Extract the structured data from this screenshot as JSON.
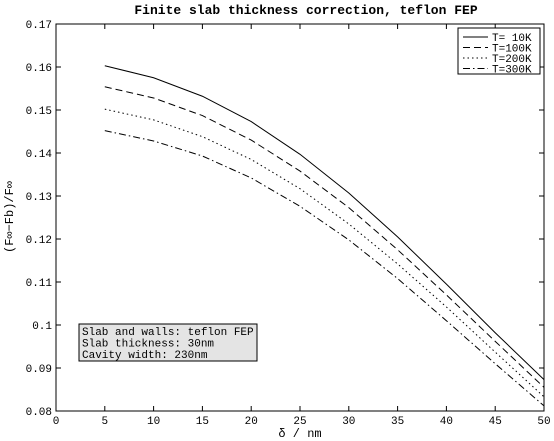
{
  "chart_data": {
    "type": "line",
    "title": "Finite slab thickness correction, teflon FEP",
    "xlabel": "δ / nm",
    "ylabel": "(F∞−Fb)/F∞",
    "xlim": [
      0,
      50
    ],
    "ylim": [
      0.08,
      0.17
    ],
    "x_ticks": [
      "0",
      "5",
      "10",
      "15",
      "20",
      "25",
      "30",
      "35",
      "40",
      "45",
      "50"
    ],
    "y_ticks": [
      "0.08",
      "0.09",
      "0.1",
      "0.11",
      "0.12",
      "0.13",
      "0.14",
      "0.15",
      "0.16",
      "0.17"
    ],
    "grid": false,
    "legend_position": "top-right",
    "x": [
      5,
      10,
      15,
      20,
      25,
      30,
      35,
      40,
      45,
      50
    ],
    "series": [
      {
        "name": "T= 10K",
        "dash": "solid",
        "values": [
          0.1603,
          0.1575,
          0.1532,
          0.1473,
          0.1397,
          0.1307,
          0.1205,
          0.1095,
          0.0982,
          0.0873
        ]
      },
      {
        "name": "T=100K",
        "dash": "dashed",
        "values": [
          0.1554,
          0.1528,
          0.1487,
          0.143,
          0.1358,
          0.1273,
          0.1175,
          0.107,
          0.0962,
          0.0855
        ]
      },
      {
        "name": "T=200K",
        "dash": "dotted",
        "values": [
          0.1502,
          0.1477,
          0.1438,
          0.1385,
          0.1317,
          0.1235,
          0.1142,
          0.1042,
          0.0937,
          0.0833
        ]
      },
      {
        "name": "T=300K",
        "dash": "dash-dot",
        "values": [
          0.1452,
          0.1428,
          0.1393,
          0.1342,
          0.1276,
          0.1198,
          0.1108,
          0.101,
          0.091,
          0.0812
        ]
      }
    ],
    "annotation": {
      "lines": [
        "Slab and walls: teflon FEP",
        "Slab thickness: 30nm",
        "Cavity width: 230nm"
      ],
      "background": "#e4e4e4"
    }
  }
}
